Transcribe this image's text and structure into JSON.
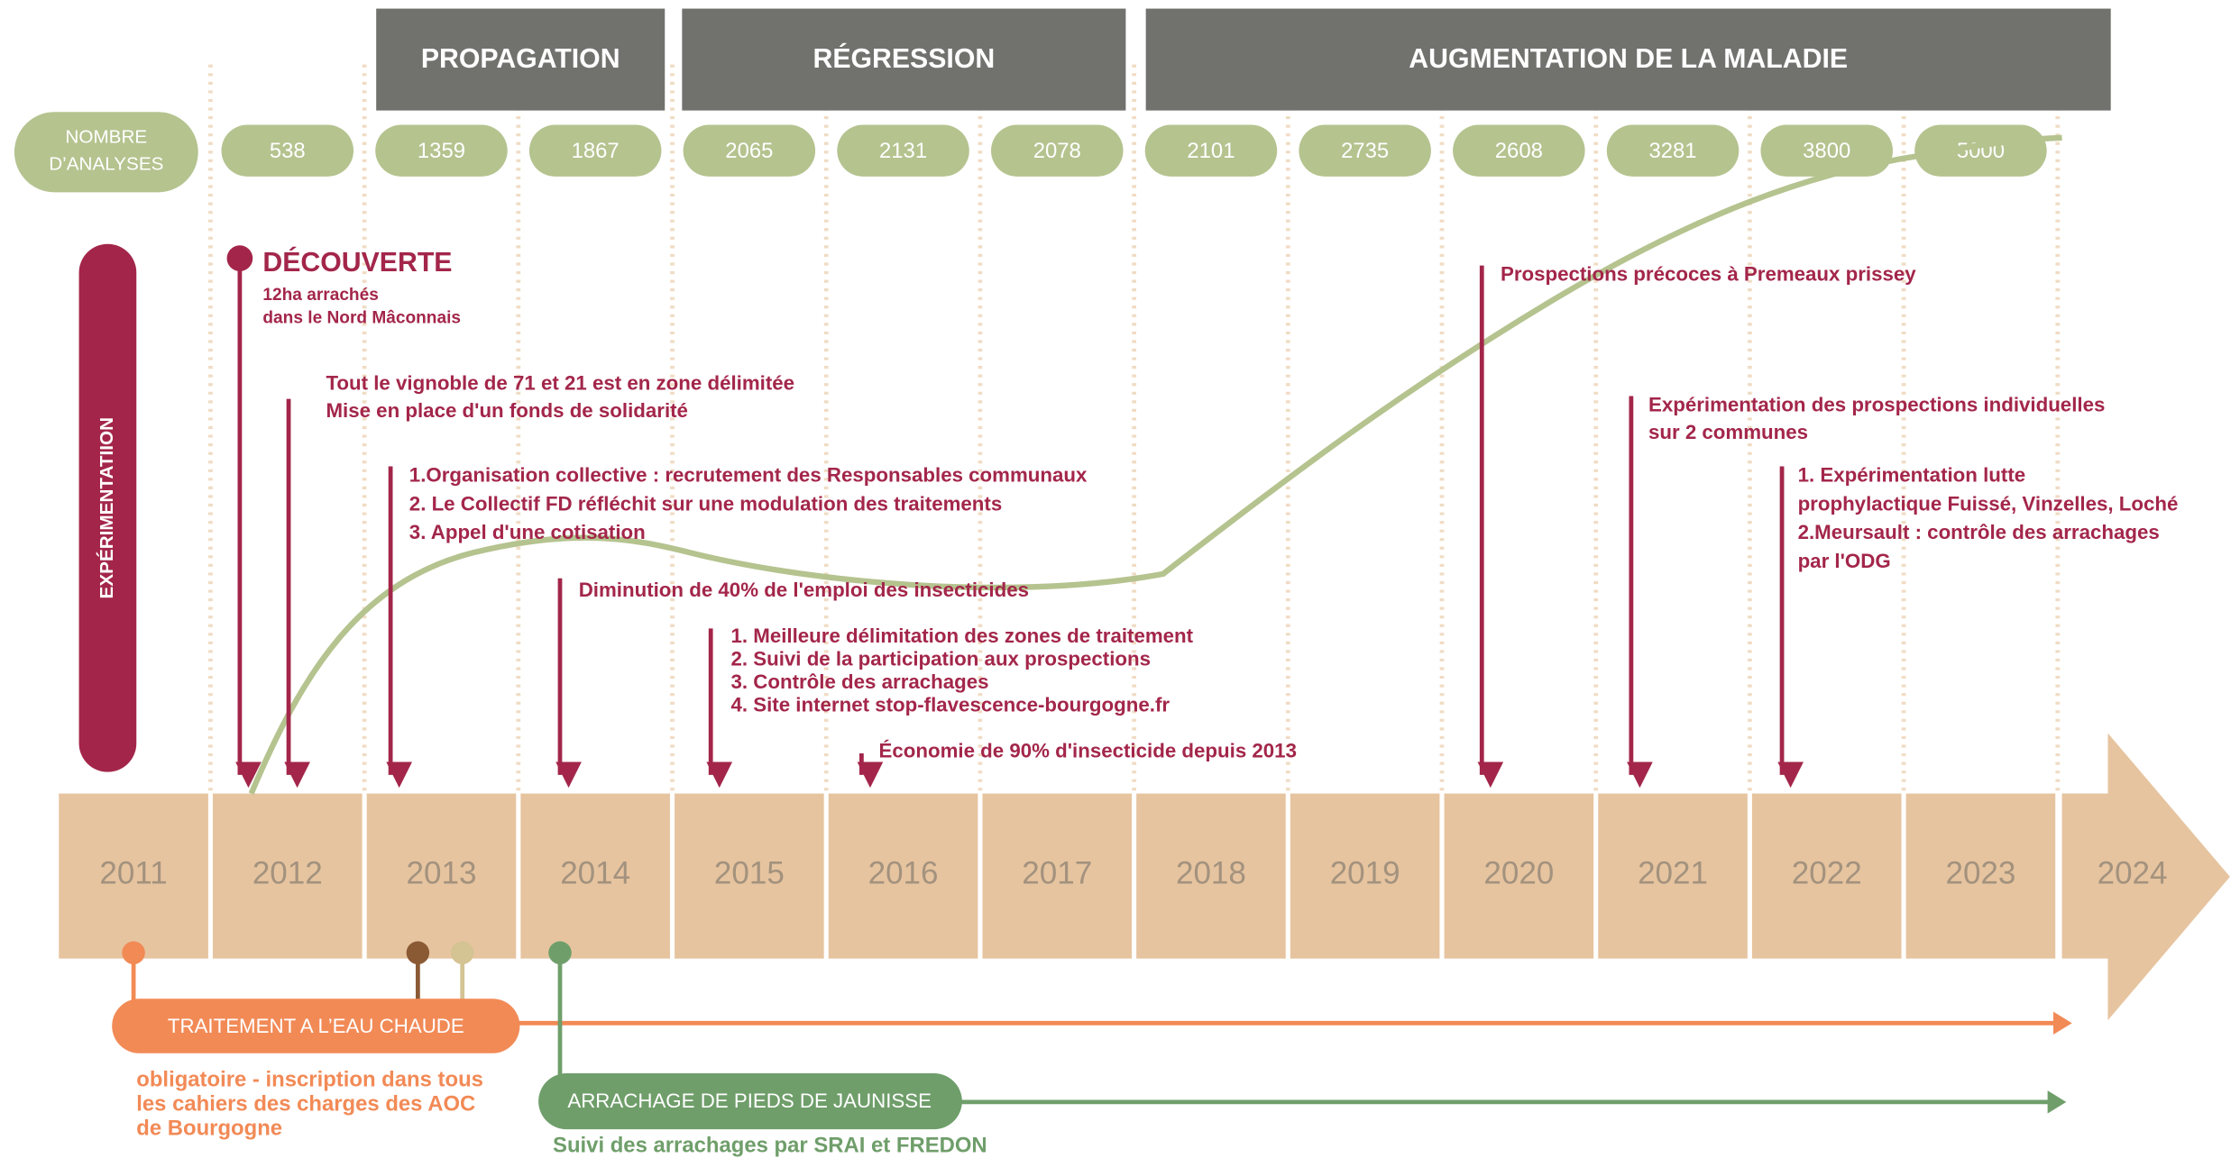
{
  "phases": [
    "PROPAGATION",
    "RÉGRESSION",
    "AUGMENTATION DE LA MALADIE"
  ],
  "analyses": {
    "label": [
      "NOMBRE",
      "D’ANALYSES"
    ],
    "values": [
      538,
      1359,
      1867,
      2065,
      2131,
      2078,
      2101,
      2735,
      2608,
      3281,
      3800,
      5000
    ]
  },
  "side_label": "EXPÉRIMENTATIION",
  "years": [
    2011,
    2012,
    2013,
    2014,
    2015,
    2016,
    2017,
    2018,
    2019,
    2020,
    2021,
    2022,
    2023,
    2024
  ],
  "discovery": {
    "title": "DÉCOUVERTE",
    "lines": [
      "12ha arrachés",
      "dans le Nord Mâconnais"
    ]
  },
  "events": [
    {
      "lines": [
        "Tout le vignoble de 71 et 21 est en zone délimitée",
        "Mise en place d'un fonds de solidarité"
      ]
    },
    {
      "lines": [
        "1.Organisation collective : recrutement des Responsables communaux",
        "2. Le Collectif FD réfléchit sur une modulation des traitements",
        "3. Appel d'une cotisation"
      ]
    },
    {
      "lines": [
        "Diminution de 40% de l'emploi des insecticides"
      ]
    },
    {
      "lines": [
        "1. Meilleure délimitation des zones de traitement",
        "2. Suivi de la participation aux prospections",
        "3. Contrôle des arrachages",
        "4. Site internet stop-flavescence-bourgogne.fr"
      ]
    },
    {
      "lines": [
        "Économie de 90% d'insecticide depuis 2013"
      ]
    },
    {
      "lines": [
        "Prospections précoces à Premeaux prissey"
      ]
    },
    {
      "lines": [
        "Expérimentation des prospections individuelles",
        "sur 2 communes"
      ]
    },
    {
      "lines": [
        "1. Expérimentation lutte",
        "prophylactique  Fuissé, Vinzelles, Loché",
        "2.Meursault : contrôle des arrachages",
        "par l'ODG"
      ]
    }
  ],
  "measures": [
    {
      "label": "TRAITEMENT A L’EAU CHAUDE",
      "lines": [
        "obligatoire - inscription dans tous",
        "les cahiers des charges des AOC",
        "de Bourgogne"
      ]
    },
    {
      "label": "ARRACHAGE DE PIEDS DE JAUNISSE",
      "lines": [
        "Suivi des arrachages par SRAI et FREDON"
      ]
    }
  ]
}
